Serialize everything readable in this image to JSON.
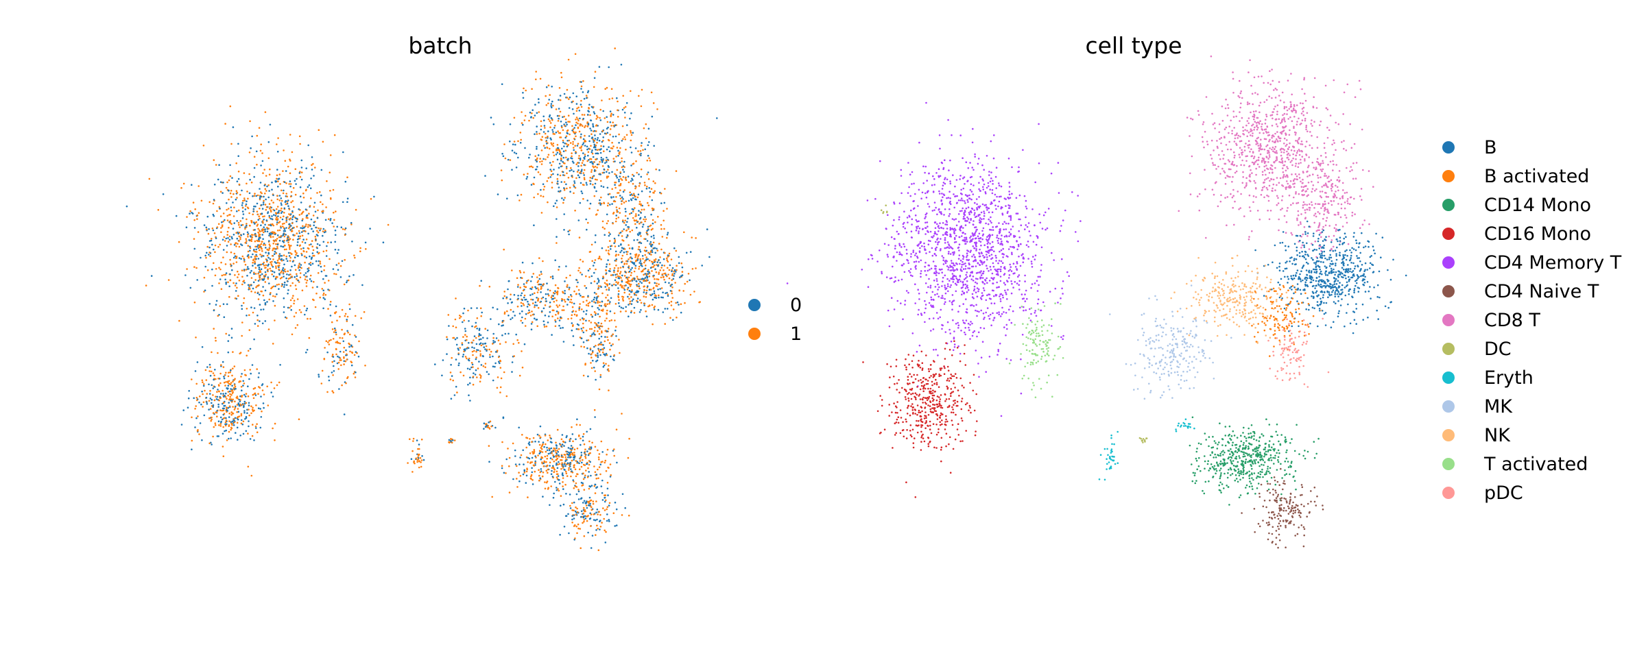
{
  "chart_data": [
    {
      "type": "scatter",
      "title": "batch",
      "xlabel": "",
      "ylabel": "",
      "grid": false,
      "legend_placement": "right",
      "categories": [
        "0",
        "1"
      ],
      "colors": [
        "#1f77b4",
        "#ff7f0e"
      ],
      "clusters": [
        {
          "x": 0.0,
          "y": 0.0,
          "sx": 0.0,
          "sy": 0.0,
          "n": 0,
          "mix": 0.5
        }
      ]
    },
    {
      "type": "scatter",
      "title": "cell type",
      "xlabel": "",
      "ylabel": "",
      "grid": false,
      "legend_placement": "right",
      "categories": [
        "B",
        "B activated",
        "CD14 Mono",
        "CD16 Mono",
        "CD4 Memory T",
        "CD4 Naive T",
        "CD8 T",
        "DC",
        "Eryth",
        "MK",
        "NK",
        "T activated",
        "pDC"
      ],
      "colors": [
        "#1f77b4",
        "#ff7f0e",
        "#279e68",
        "#d62728",
        "#aa40fc",
        "#8c564b",
        "#e377c2",
        "#b5bd61",
        "#17becf",
        "#aec7e8",
        "#ffbb78",
        "#98df8a",
        "#ff9896"
      ]
    }
  ]
}
